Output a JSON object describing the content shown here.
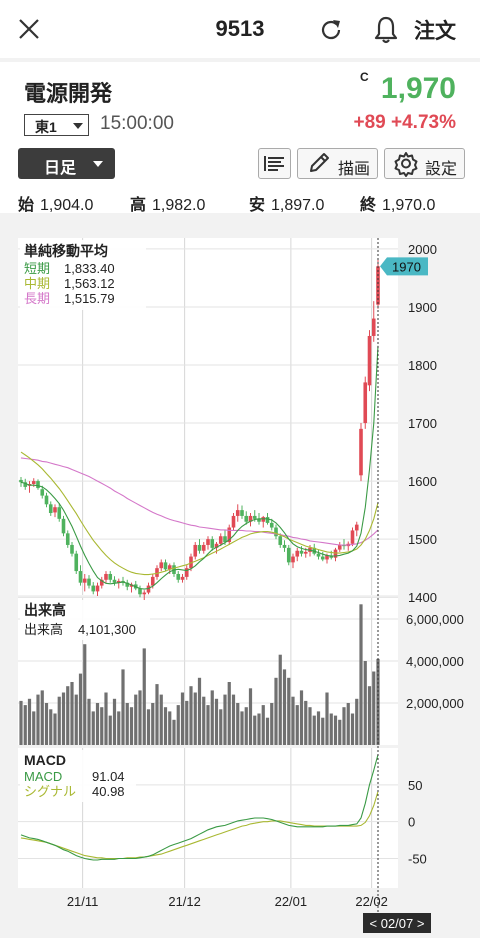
{
  "header": {
    "title": "9513",
    "order_label": "注文",
    "icons": [
      "close-icon",
      "reload-icon",
      "bell-icon"
    ]
  },
  "stock": {
    "name": "電源開発",
    "market": "東1",
    "time": "15:00:00",
    "flag": "C",
    "price": "1,970",
    "change": "+89",
    "change_pct": "+4.73%",
    "up_color": "#4fb25e",
    "down_color": "#e04a55"
  },
  "toolbar": {
    "period": "日足",
    "draw_label": "描画",
    "settings_label": "設定"
  },
  "ohlc": [
    {
      "k": "始",
      "v": "1,904.0"
    },
    {
      "k": "高",
      "v": "1,982.0"
    },
    {
      "k": "安",
      "v": "1,897.0"
    },
    {
      "k": "終",
      "v": "1,970.0"
    }
  ],
  "chart_data": {
    "type": "candlestick",
    "price_axis": {
      "ticks": [
        "2000",
        "1900",
        "1800",
        "1700",
        "1600",
        "1500",
        "1400"
      ],
      "range": [
        1385,
        2005
      ],
      "current_tag": "1970"
    },
    "x_labels": [
      "21/11",
      "21/12",
      "22/01",
      "22/02"
    ],
    "cursor_label": "< 02/07 >",
    "ma_legend": {
      "title": "単純移動平均",
      "items": [
        {
          "name": "短期",
          "value": "1,833.40",
          "color": "#3a9a45"
        },
        {
          "name": "中期",
          "value": "1,563.12",
          "color": "#a9b832"
        },
        {
          "name": "長期",
          "value": "1,515.79",
          "color": "#d477c9"
        }
      ]
    },
    "volume": {
      "title": "出来高",
      "label": "出来高",
      "value": "4,101,300",
      "ticks": [
        "6,000,000",
        "4,000,000",
        "2,000,000"
      ],
      "max": 7000000
    },
    "macd": {
      "title": "MACD",
      "items": [
        {
          "name": "MACD",
          "value": "91.04",
          "color": "#3a9a45"
        },
        {
          "name": "シグナル",
          "value": "40.98",
          "color": "#a9b832"
        }
      ],
      "ticks": [
        "50",
        "0",
        "-50"
      ],
      "range": [
        -90,
        100
      ]
    },
    "candles": [
      [
        1602,
        1607,
        1590,
        1598
      ],
      [
        1598,
        1604,
        1585,
        1590
      ],
      [
        1592,
        1600,
        1580,
        1595
      ],
      [
        1595,
        1605,
        1590,
        1600
      ],
      [
        1600,
        1603,
        1585,
        1588
      ],
      [
        1586,
        1592,
        1570,
        1575
      ],
      [
        1575,
        1580,
        1555,
        1560
      ],
      [
        1560,
        1565,
        1540,
        1545
      ],
      [
        1546,
        1560,
        1538,
        1555
      ],
      [
        1555,
        1562,
        1530,
        1535
      ],
      [
        1535,
        1540,
        1505,
        1510
      ],
      [
        1510,
        1515,
        1485,
        1490
      ],
      [
        1490,
        1495,
        1470,
        1475
      ],
      [
        1475,
        1480,
        1440,
        1445
      ],
      [
        1445,
        1455,
        1420,
        1425
      ],
      [
        1425,
        1440,
        1410,
        1432
      ],
      [
        1432,
        1438,
        1415,
        1420
      ],
      [
        1420,
        1426,
        1405,
        1410
      ],
      [
        1410,
        1425,
        1402,
        1420
      ],
      [
        1420,
        1435,
        1415,
        1430
      ],
      [
        1430,
        1445,
        1425,
        1440
      ],
      [
        1440,
        1445,
        1425,
        1430
      ],
      [
        1430,
        1436,
        1420,
        1425
      ],
      [
        1425,
        1432,
        1415,
        1428
      ],
      [
        1428,
        1435,
        1420,
        1425
      ],
      [
        1425,
        1430,
        1412,
        1418
      ],
      [
        1418,
        1425,
        1408,
        1422
      ],
      [
        1422,
        1428,
        1412,
        1415
      ],
      [
        1415,
        1420,
        1400,
        1405
      ],
      [
        1405,
        1412,
        1395,
        1408
      ],
      [
        1408,
        1425,
        1405,
        1420
      ],
      [
        1420,
        1440,
        1415,
        1435
      ],
      [
        1435,
        1455,
        1430,
        1450
      ],
      [
        1450,
        1465,
        1445,
        1460
      ],
      [
        1460,
        1465,
        1445,
        1448
      ],
      [
        1448,
        1458,
        1440,
        1455
      ],
      [
        1455,
        1460,
        1435,
        1440
      ],
      [
        1440,
        1445,
        1425,
        1430
      ],
      [
        1430,
        1440,
        1425,
        1435
      ],
      [
        1435,
        1455,
        1430,
        1450
      ],
      [
        1450,
        1475,
        1445,
        1470
      ],
      [
        1470,
        1495,
        1465,
        1490
      ],
      [
        1490,
        1500,
        1475,
        1480
      ],
      [
        1480,
        1495,
        1475,
        1490
      ],
      [
        1490,
        1505,
        1482,
        1500
      ],
      [
        1500,
        1505,
        1480,
        1485
      ],
      [
        1485,
        1495,
        1475,
        1492
      ],
      [
        1492,
        1510,
        1488,
        1505
      ],
      [
        1505,
        1515,
        1490,
        1495
      ],
      [
        1495,
        1525,
        1490,
        1520
      ],
      [
        1520,
        1545,
        1515,
        1540
      ],
      [
        1540,
        1560,
        1530,
        1550
      ],
      [
        1550,
        1558,
        1535,
        1540
      ],
      [
        1540,
        1548,
        1525,
        1530
      ],
      [
        1530,
        1545,
        1522,
        1540
      ],
      [
        1540,
        1550,
        1530,
        1535
      ],
      [
        1535,
        1545,
        1525,
        1530
      ],
      [
        1530,
        1540,
        1520,
        1538
      ],
      [
        1538,
        1545,
        1525,
        1528
      ],
      [
        1528,
        1535,
        1515,
        1520
      ],
      [
        1520,
        1525,
        1500,
        1505
      ],
      [
        1505,
        1510,
        1485,
        1490
      ],
      [
        1490,
        1498,
        1478,
        1485
      ],
      [
        1485,
        1490,
        1455,
        1460
      ],
      [
        1460,
        1475,
        1450,
        1470
      ],
      [
        1470,
        1485,
        1462,
        1480
      ],
      [
        1480,
        1488,
        1470,
        1475
      ],
      [
        1475,
        1485,
        1468,
        1478
      ],
      [
        1478,
        1490,
        1470,
        1485
      ],
      [
        1485,
        1492,
        1472,
        1475
      ],
      [
        1475,
        1482,
        1465,
        1470
      ],
      [
        1470,
        1478,
        1462,
        1465
      ],
      [
        1465,
        1475,
        1458,
        1472
      ],
      [
        1472,
        1480,
        1465,
        1468
      ],
      [
        1468,
        1485,
        1462,
        1482
      ],
      [
        1482,
        1495,
        1478,
        1490
      ],
      [
        1490,
        1500,
        1482,
        1488
      ],
      [
        1488,
        1496,
        1480,
        1492
      ],
      [
        1492,
        1520,
        1488,
        1515
      ],
      [
        1515,
        1530,
        1505,
        1525
      ],
      [
        1610,
        1700,
        1600,
        1690
      ],
      [
        1700,
        1780,
        1690,
        1770
      ],
      [
        1765,
        1860,
        1755,
        1850
      ],
      [
        1850,
        1910,
        1840,
        1880
      ],
      [
        1904,
        1982,
        1897,
        1970
      ]
    ],
    "short_ma": [
      1598,
      1596,
      1593,
      1593,
      1592,
      1590,
      1585,
      1578,
      1570,
      1561,
      1550,
      1536,
      1522,
      1505,
      1488,
      1472,
      1458,
      1445,
      1434,
      1428,
      1424,
      1423,
      1424,
      1425,
      1426,
      1424,
      1421,
      1418,
      1415,
      1414,
      1415,
      1419,
      1425,
      1432,
      1438,
      1444,
      1447,
      1448,
      1447,
      1446,
      1449,
      1454,
      1461,
      1467,
      1475,
      1482,
      1486,
      1490,
      1494,
      1499,
      1506,
      1515,
      1522,
      1527,
      1531,
      1534,
      1535,
      1535,
      1535,
      1533,
      1528,
      1520,
      1511,
      1500,
      1492,
      1487,
      1484,
      1482,
      1481,
      1479,
      1477,
      1474,
      1472,
      1471,
      1471,
      1472,
      1474,
      1476,
      1480,
      1488,
      1510,
      1555,
      1620,
      1700,
      1833
    ],
    "mid_ma": [
      1650,
      1645,
      1640,
      1634,
      1628,
      1621,
      1613,
      1605,
      1596,
      1587,
      1577,
      1566,
      1555,
      1544,
      1532,
      1520,
      1509,
      1498,
      1489,
      1480,
      1472,
      1465,
      1459,
      1454,
      1450,
      1446,
      1443,
      1441,
      1440,
      1439,
      1439,
      1440,
      1441,
      1443,
      1445,
      1448,
      1450,
      1452,
      1454,
      1456,
      1459,
      1462,
      1465,
      1468,
      1472,
      1476,
      1479,
      1483,
      1487,
      1491,
      1495,
      1499,
      1503,
      1506,
      1509,
      1511,
      1512,
      1513,
      1513,
      1512,
      1510,
      1507,
      1504,
      1500,
      1497,
      1494,
      1491,
      1488,
      1486,
      1484,
      1482,
      1480,
      1478,
      1477,
      1476,
      1476,
      1477,
      1478,
      1480,
      1483,
      1490,
      1500,
      1515,
      1535,
      1563
    ],
    "long_ma": [
      1640,
      1639,
      1638,
      1637,
      1636,
      1634,
      1633,
      1631,
      1629,
      1627,
      1625,
      1623,
      1620,
      1617,
      1614,
      1611,
      1608,
      1604,
      1600,
      1596,
      1592,
      1588,
      1583,
      1579,
      1575,
      1570,
      1566,
      1562,
      1558,
      1554,
      1550,
      1546,
      1543,
      1540,
      1537,
      1534,
      1532,
      1530,
      1528,
      1526,
      1524,
      1523,
      1521,
      1520,
      1519,
      1518,
      1517,
      1516,
      1516,
      1515,
      1515,
      1515,
      1515,
      1514,
      1514,
      1513,
      1513,
      1512,
      1511,
      1510,
      1509,
      1508,
      1506,
      1505,
      1503,
      1502,
      1500,
      1499,
      1497,
      1496,
      1495,
      1494,
      1493,
      1492,
      1491,
      1490,
      1490,
      1490,
      1491,
      1492,
      1494,
      1498,
      1503,
      1509,
      1516
    ],
    "volume_values": [
      2100000,
      1900000,
      2200000,
      1600000,
      2400000,
      2600000,
      2000000,
      1700000,
      1500000,
      2300000,
      2500000,
      2800000,
      3000000,
      2400000,
      3400000,
      4800000,
      2200000,
      1600000,
      2000000,
      1800000,
      2500000,
      1400000,
      2200000,
      1600000,
      3600000,
      2000000,
      1800000,
      2400000,
      2600000,
      4600000,
      1700000,
      2000000,
      2900000,
      2400000,
      1800000,
      1600000,
      1200000,
      1900000,
      2500000,
      2100000,
      2800000,
      2500000,
      3200000,
      2300000,
      1900000,
      2600000,
      2200000,
      1700000,
      2400000,
      3000000,
      2400000,
      2000000,
      1600000,
      1800000,
      2700000,
      1400000,
      1500000,
      1900000,
      1300000,
      2000000,
      3200000,
      4300000,
      3600000,
      3200000,
      2300000,
      1900000,
      2600000,
      2100000,
      1800000,
      1400000,
      1600000,
      1300000,
      2500000,
      1500000,
      1400000,
      1200000,
      1800000,
      2000000,
      1500000,
      2200000,
      6700000,
      4000000,
      2800000,
      3500000,
      4100000
    ],
    "macd_line": [
      -18,
      -20,
      -22,
      -23,
      -24,
      -26,
      -28,
      -30,
      -32,
      -35,
      -38,
      -40,
      -43,
      -46,
      -48,
      -50,
      -51,
      -52,
      -52,
      -51,
      -51,
      -51,
      -51,
      -50,
      -50,
      -50,
      -50,
      -50,
      -49,
      -48,
      -47,
      -45,
      -42,
      -39,
      -36,
      -33,
      -31,
      -29,
      -27,
      -25,
      -23,
      -20,
      -17,
      -14,
      -11,
      -9,
      -7,
      -6,
      -5,
      -3,
      -1,
      1,
      2,
      3,
      4,
      5,
      5,
      5,
      4,
      3,
      1,
      -1,
      -3,
      -5,
      -6,
      -7,
      -7,
      -7,
      -7,
      -7,
      -7,
      -7,
      -6,
      -6,
      -6,
      -5,
      -5,
      -5,
      -4,
      -3,
      5,
      25,
      50,
      70,
      91
    ],
    "signal_line": [
      -22,
      -23,
      -24,
      -25,
      -26,
      -27,
      -28,
      -30,
      -32,
      -34,
      -36,
      -38,
      -40,
      -42,
      -44,
      -46,
      -47,
      -48,
      -49,
      -49,
      -50,
      -50,
      -50,
      -50,
      -50,
      -49,
      -49,
      -49,
      -48,
      -48,
      -47,
      -46,
      -45,
      -44,
      -42,
      -40,
      -38,
      -36,
      -34,
      -32,
      -30,
      -28,
      -26,
      -24,
      -22,
      -20,
      -18,
      -16,
      -14,
      -12,
      -10,
      -8,
      -6,
      -5,
      -3,
      -2,
      -1,
      0,
      0,
      1,
      1,
      1,
      0,
      -1,
      -2,
      -3,
      -4,
      -5,
      -5,
      -6,
      -6,
      -6,
      -6,
      -6,
      -6,
      -6,
      -6,
      -6,
      -6,
      -6,
      -5,
      -1,
      8,
      22,
      41
    ]
  }
}
